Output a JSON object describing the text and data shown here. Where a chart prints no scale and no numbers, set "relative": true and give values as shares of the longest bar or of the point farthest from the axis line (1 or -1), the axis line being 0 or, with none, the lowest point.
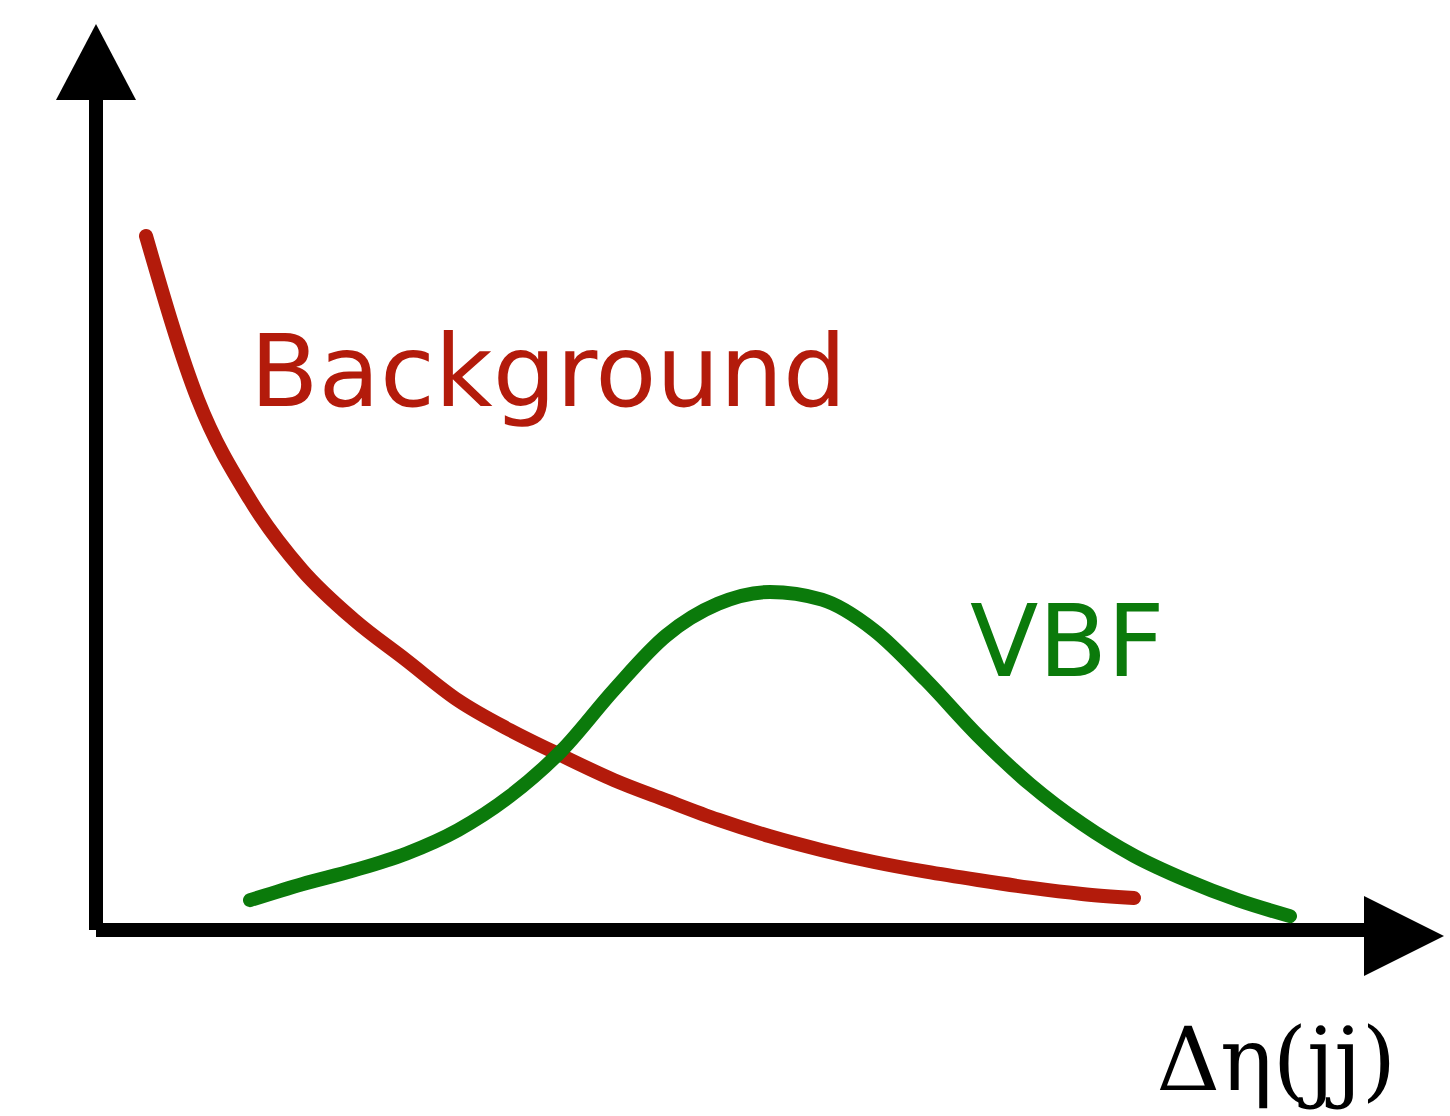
{
  "chart_data": {
    "type": "line",
    "relative": true,
    "xlabel": "Δη(jj)",
    "legend": false,
    "marker": "none",
    "line_style": "solid",
    "categories": [
      null,
      null,
      null,
      null,
      null,
      null,
      null,
      null,
      null,
      null,
      null,
      null,
      null,
      null,
      null,
      null,
      null,
      null,
      null,
      null,
      null,
      null,
      null
    ],
    "series": [
      {
        "name": "Background",
        "color": "#b31b0b",
        "values": [
          1,
          0.764,
          0.62,
          0.519,
          0.447,
          0.389,
          0.331,
          0.288,
          0.251,
          0.216,
          0.187,
          0.159,
          0.135,
          0.115,
          0.098,
          0.084,
          0.072,
          0.061,
          0.052,
          0.046,
          null,
          null,
          null
        ]
      },
      {
        "name": "VBF",
        "color": "#0b7a0b",
        "values": [
          null,
          null,
          0.043,
          0.066,
          0.086,
          0.11,
          0.144,
          0.193,
          0.259,
          0.346,
          0.424,
          0.47,
          0.487,
          0.476,
          0.432,
          0.36,
          0.28,
          0.21,
          0.153,
          0.107,
          0.072,
          0.043,
          0.02
        ]
      }
    ]
  }
}
